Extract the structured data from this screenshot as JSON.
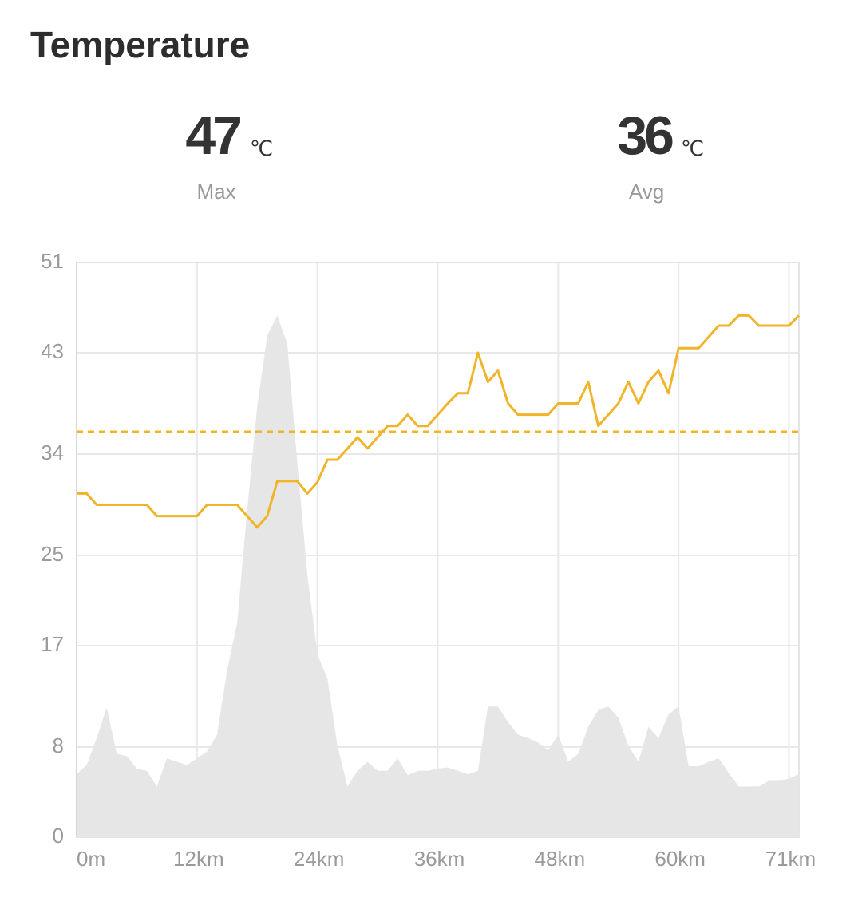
{
  "title": "Temperature",
  "stats": [
    {
      "value": 47,
      "unit": "℃",
      "label": "Max"
    },
    {
      "value": 36,
      "unit": "℃",
      "label": "Avg"
    }
  ],
  "chart_data": {
    "type": "line",
    "x": [
      0,
      1,
      2,
      3,
      4,
      5,
      6,
      7,
      8,
      9,
      10,
      11,
      12,
      13,
      14,
      15,
      16,
      17,
      18,
      19,
      20,
      21,
      22,
      23,
      24,
      25,
      26,
      27,
      28,
      29,
      30,
      31,
      32,
      33,
      34,
      35,
      36,
      37,
      38,
      39,
      40,
      41,
      42,
      43,
      44,
      45,
      46,
      47,
      48,
      49,
      50,
      51,
      52,
      53,
      54,
      55,
      56,
      57,
      58,
      59,
      60,
      61,
      62,
      63,
      64,
      65,
      66,
      67,
      68,
      69,
      70,
      71,
      72
    ],
    "series": [
      {
        "kind": "area",
        "color": "#e6e6e6",
        "values": [
          5.6,
          6.4,
          8.8,
          11.5,
          7.4,
          7.2,
          6.1,
          5.9,
          4.5,
          7.0,
          6.7,
          6.4,
          7.0,
          7.6,
          9.1,
          14.8,
          19.0,
          29.0,
          38.2,
          44.5,
          46.3,
          43.8,
          33.2,
          23.3,
          16.2,
          14.1,
          8.1,
          4.5,
          5.9,
          6.7,
          5.9,
          5.9,
          7.0,
          5.5,
          5.9,
          5.9,
          6.1,
          6.2,
          5.9,
          5.6,
          5.9,
          11.6,
          11.6,
          10.2,
          9.1,
          8.8,
          8.4,
          7.7,
          9.1,
          6.7,
          7.4,
          9.8,
          11.3,
          11.6,
          10.6,
          8.1,
          6.7,
          9.8,
          8.8,
          10.9,
          11.6,
          6.3,
          6.3,
          6.7,
          7.0,
          5.7,
          4.5,
          4.5,
          4.5,
          5.0,
          5.0,
          5.2,
          5.6
        ]
      },
      {
        "kind": "line",
        "color": "#f0b429",
        "values": [
          30.5,
          30.5,
          29.5,
          29.5,
          29.5,
          29.5,
          29.5,
          29.5,
          28.5,
          28.5,
          28.5,
          28.5,
          28.5,
          29.5,
          29.5,
          29.5,
          29.5,
          28.5,
          27.5,
          28.5,
          31.6,
          31.6,
          31.6,
          30.5,
          31.5,
          33.5,
          33.5,
          34.5,
          35.5,
          34.5,
          35.5,
          36.5,
          36.5,
          37.5,
          36.5,
          36.5,
          37.5,
          38.5,
          39.4,
          39.4,
          43,
          40.4,
          41.4,
          38.5,
          37.5,
          37.5,
          37.5,
          37.5,
          38.5,
          38.5,
          38.5,
          40.4,
          36.5,
          37.5,
          38.5,
          40.4,
          38.5,
          40.4,
          41.4,
          39.4,
          43.4,
          43.4,
          43.4,
          44.4,
          45.4,
          45.4,
          46.3,
          46.3,
          45.4,
          45.4,
          45.4,
          45.4,
          46.3
        ]
      }
    ],
    "avg_color": "#f0b429",
    "xlim": [
      0,
      72
    ],
    "xticks": [
      {
        "value": 0,
        "label": "0m"
      },
      {
        "value": 12,
        "label": "12km"
      },
      {
        "value": 24,
        "label": "24km"
      },
      {
        "value": 36,
        "label": "36km"
      },
      {
        "value": 48,
        "label": "48km"
      },
      {
        "value": 60,
        "label": "60km"
      },
      {
        "value": 71,
        "label": "71km"
      }
    ],
    "ylim": [
      0,
      51
    ],
    "yticks": [
      0,
      8,
      17,
      25,
      34,
      43,
      51
    ],
    "grid": true
  }
}
